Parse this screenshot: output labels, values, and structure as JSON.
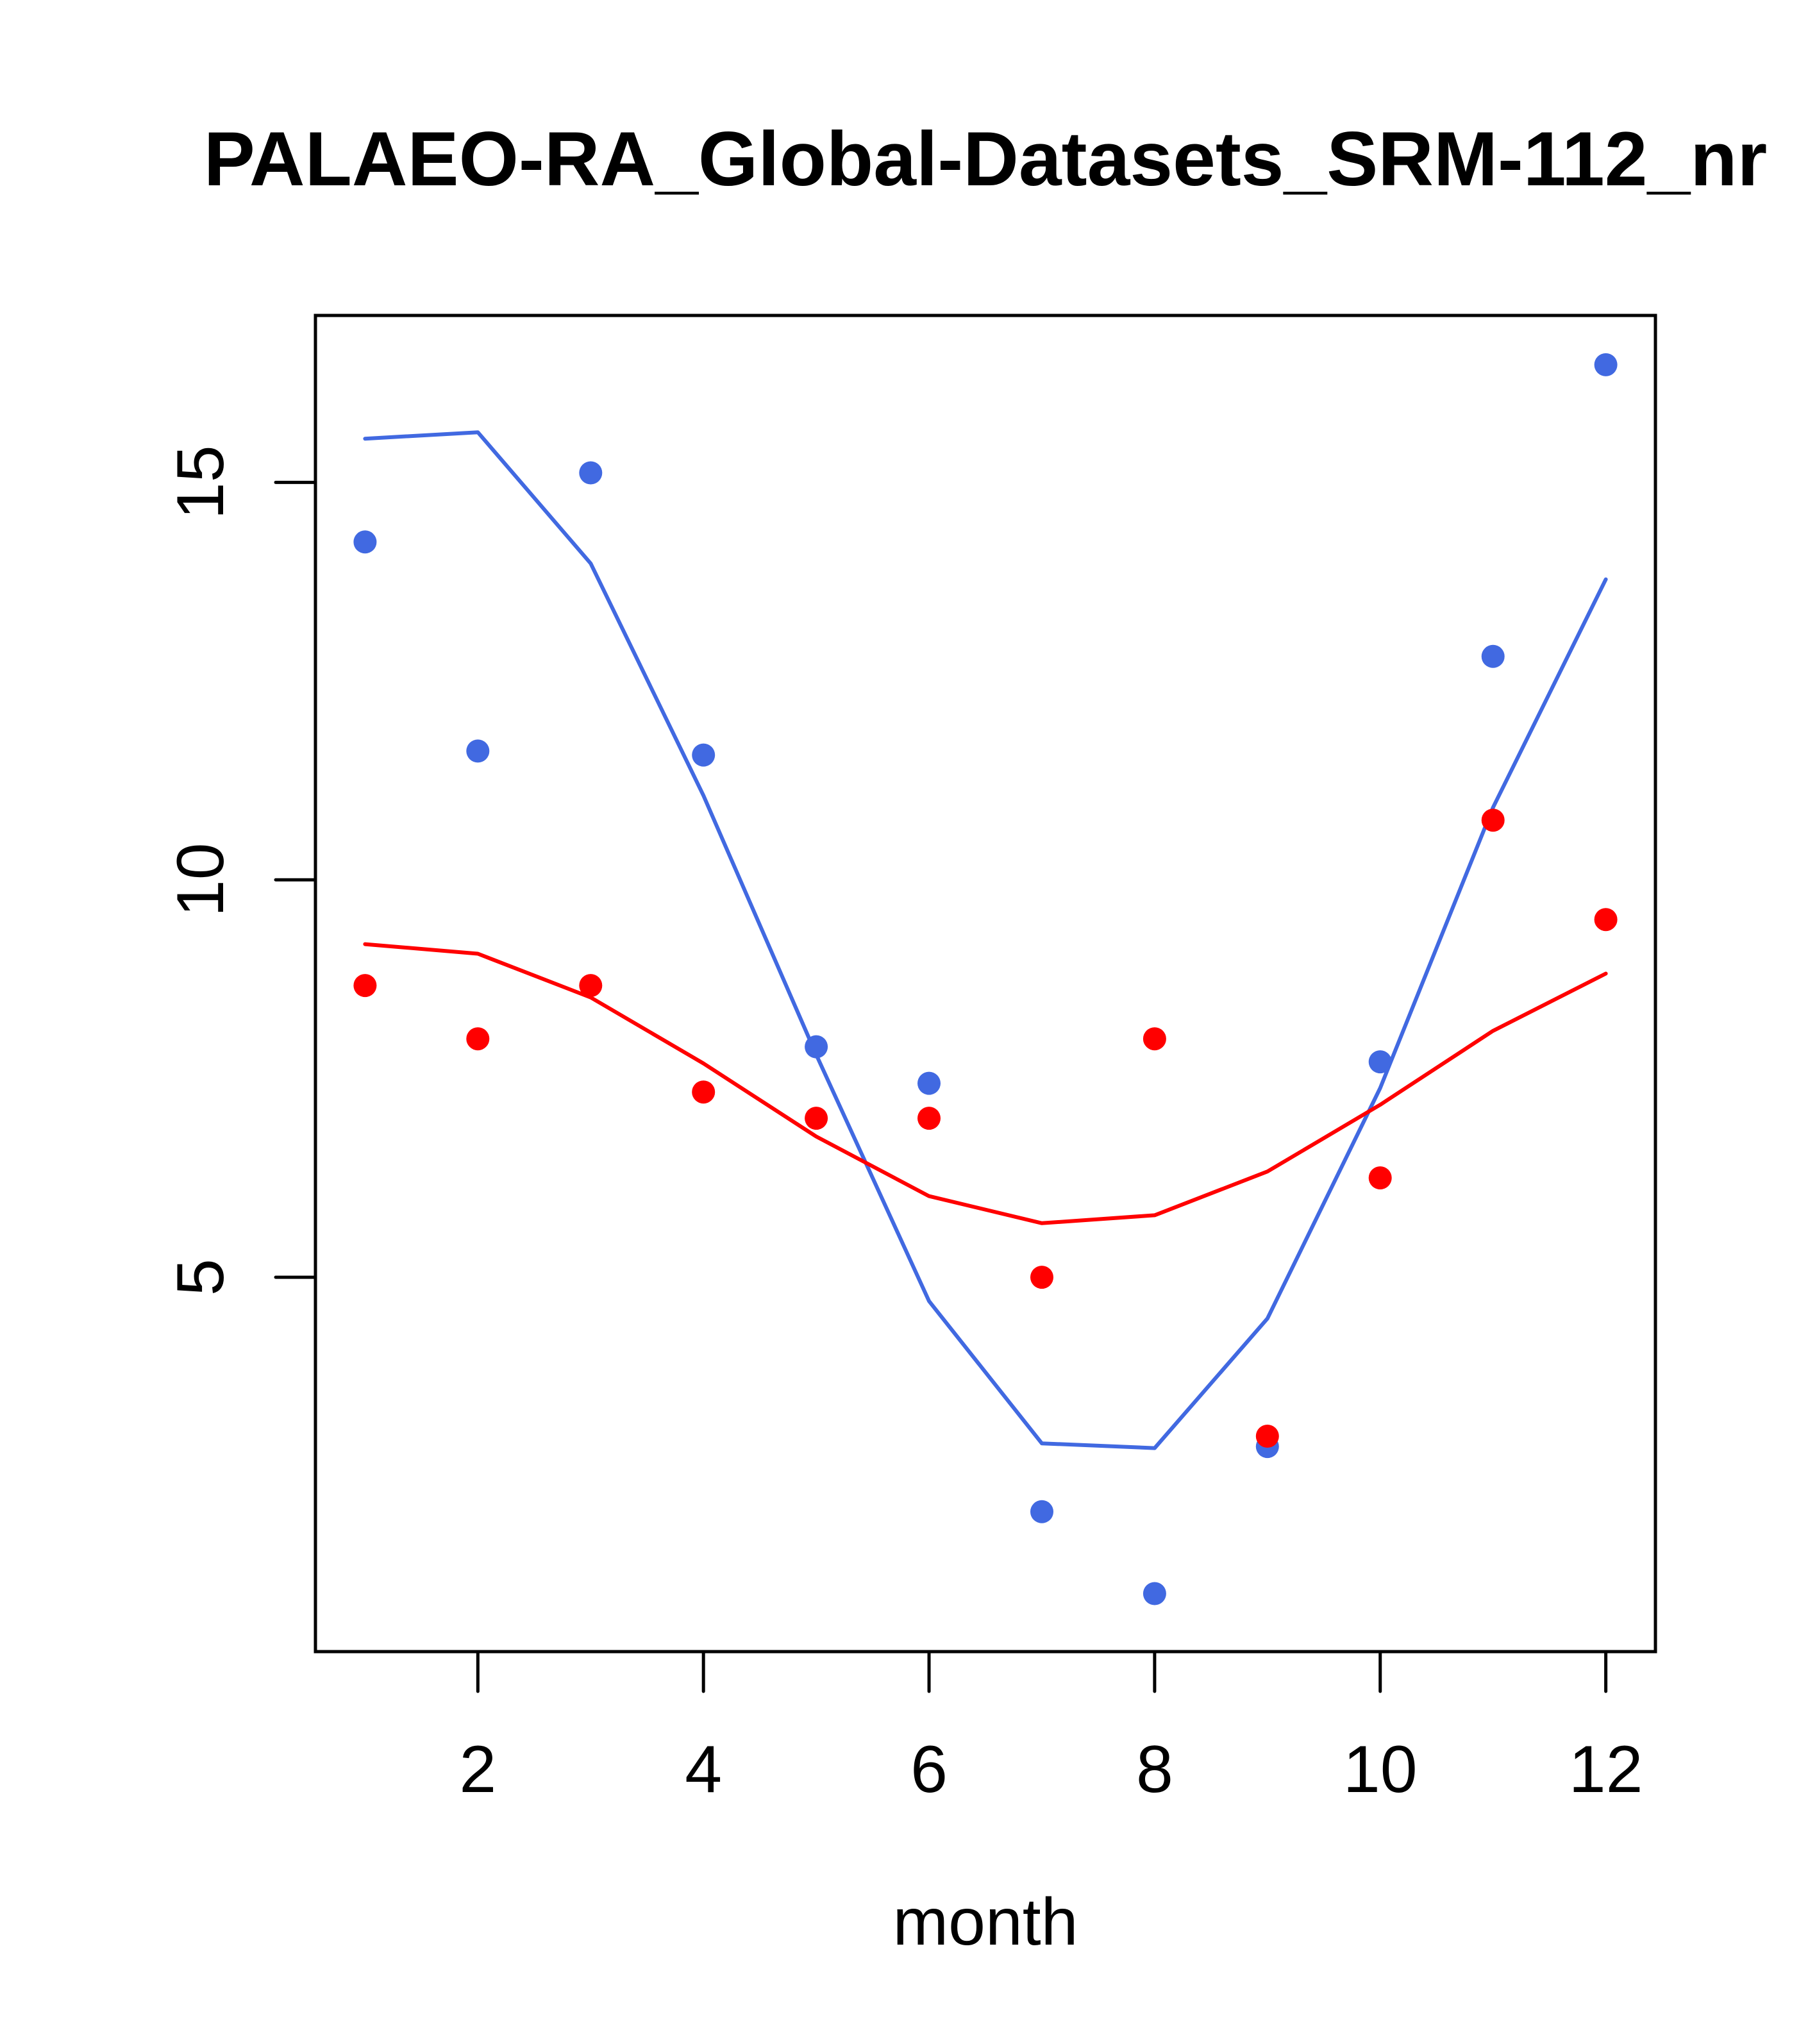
{
  "chart_data": {
    "type": "scatter",
    "title": "PALAEO-RA_Global-Datasets_SRM-112_nr",
    "xlabel": "month",
    "ylabel": "",
    "xlim": [
      0.56,
      12.44
    ],
    "ylim": [
      0.29,
      17.1
    ],
    "grid": false,
    "legend": "none",
    "x_ticks": [
      2,
      4,
      6,
      8,
      10,
      12
    ],
    "x_tick_labels": [
      "2",
      "4",
      "6",
      "8",
      "10",
      "12"
    ],
    "y_ticks": [
      5,
      10,
      15
    ],
    "y_tick_labels": [
      "5",
      "10",
      "15"
    ],
    "x": [
      1,
      2,
      3,
      4,
      5,
      6,
      7,
      8,
      9,
      10,
      11,
      12
    ],
    "series": [
      {
        "name": "blue points",
        "kind": "points",
        "color": "#4169E1",
        "values": [
          14.25,
          11.62,
          15.12,
          11.57,
          7.9,
          7.44,
          2.05,
          1.02,
          2.87,
          7.71,
          12.81,
          16.48
        ]
      },
      {
        "name": "blue fit",
        "kind": "line",
        "color": "#4169E1",
        "values": [
          15.55,
          15.63,
          13.98,
          11.06,
          7.8,
          4.7,
          2.91,
          2.85,
          4.48,
          7.38,
          10.91,
          13.78
        ]
      },
      {
        "name": "red points",
        "kind": "points",
        "color": "#FF0000",
        "values": [
          8.67,
          8.0,
          8.67,
          7.33,
          7.0,
          7.0,
          5.0,
          8.0,
          3.0,
          6.25,
          10.75,
          9.5
        ]
      },
      {
        "name": "red fit",
        "kind": "line",
        "color": "#FF0000",
        "values": [
          9.19,
          9.07,
          8.52,
          7.69,
          6.77,
          6.02,
          5.68,
          5.78,
          6.33,
          7.17,
          8.1,
          8.82
        ]
      }
    ]
  }
}
